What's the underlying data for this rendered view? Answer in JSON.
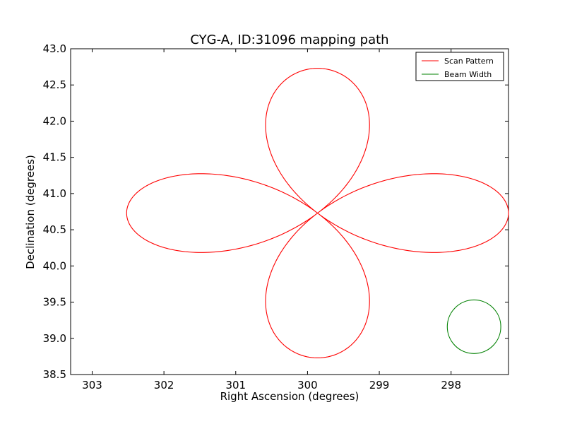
{
  "chart_data": {
    "type": "line",
    "title": "CYG-A, ID:31096 mapping path",
    "xlabel": "Right Ascension (degrees)",
    "ylabel": "Declination (degrees)",
    "xlim": [
      303.3,
      297.2
    ],
    "ylim": [
      38.5,
      43.0
    ],
    "x_inverted": true,
    "xticks": [
      303,
      302,
      301,
      300,
      299,
      298
    ],
    "yticks": [
      38.5,
      39.0,
      39.5,
      40.0,
      40.5,
      41.0,
      41.5,
      42.0,
      42.5,
      43.0
    ],
    "xtick_labels": [
      "303",
      "302",
      "301",
      "300",
      "299",
      "298"
    ],
    "ytick_labels": [
      "38.5",
      "39.0",
      "39.5",
      "40.0",
      "40.5",
      "41.0",
      "41.5",
      "42.0",
      "42.5",
      "43.0"
    ],
    "grid": false,
    "legend_position": "top-right",
    "series": [
      {
        "name": "Scan Pattern",
        "color": "#ff0000",
        "shape": "four-petal rose curve",
        "center": [
          299.86,
          40.73
        ],
        "lobe_extent_ra": 2.66,
        "lobe_extent_dec": 2.0,
        "x": [
          302.52,
          302.4,
          302.2,
          301.9,
          301.5,
          301.0,
          300.5,
          299.86,
          299.2,
          298.7,
          298.25,
          297.7,
          297.22,
          297.7,
          298.25,
          298.7,
          299.2,
          299.86,
          300.5,
          301.0,
          301.5,
          301.9,
          302.2,
          302.4,
          302.52
        ],
        "y": [
          40.73,
          41.0,
          41.17,
          41.26,
          41.28,
          41.2,
          41.0,
          40.73,
          40.42,
          40.26,
          40.18,
          40.3,
          40.73,
          41.18,
          41.28,
          41.26,
          41.1,
          40.73,
          40.45,
          40.3,
          40.18,
          40.22,
          40.35,
          40.55,
          40.73
        ]
      },
      {
        "name": "Beam Width",
        "color": "#008000",
        "shape": "circle",
        "center": [
          297.68,
          39.16
        ],
        "radius_deg": 0.37
      }
    ]
  }
}
